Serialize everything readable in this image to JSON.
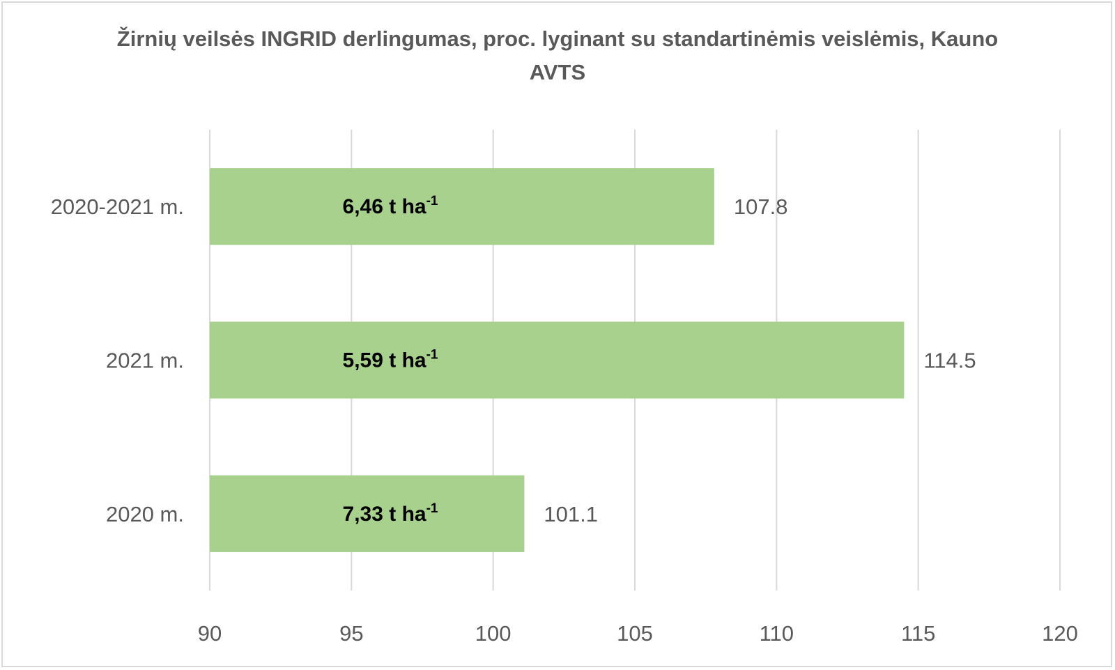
{
  "chart_data": {
    "type": "bar",
    "orientation": "horizontal",
    "title": "Žirnių veilsės INGRID derlingumas, proc. lyginant su standartinėmis veislėmis, Kauno AVTS",
    "categories": [
      "2020-2021 m.",
      "2021 m.",
      "2020 m."
    ],
    "values": [
      107.8,
      114.5,
      101.1
    ],
    "bar_labels": [
      {
        "text": "6,46 t ha",
        "sup": "-1"
      },
      {
        "text": "5,59 t ha",
        "sup": "-1"
      },
      {
        "text": "7,33 t ha",
        "sup": "-1"
      }
    ],
    "xlim": [
      90,
      120
    ],
    "xticks": [
      90,
      95,
      100,
      105,
      110,
      115,
      120
    ],
    "xlabel": "",
    "ylabel": "",
    "grid": "vertical",
    "legend": "none",
    "colors": {
      "bar": "#a9d18e",
      "grid": "#d9d9d9",
      "text": "#595959",
      "bar_label": "#000000"
    }
  }
}
